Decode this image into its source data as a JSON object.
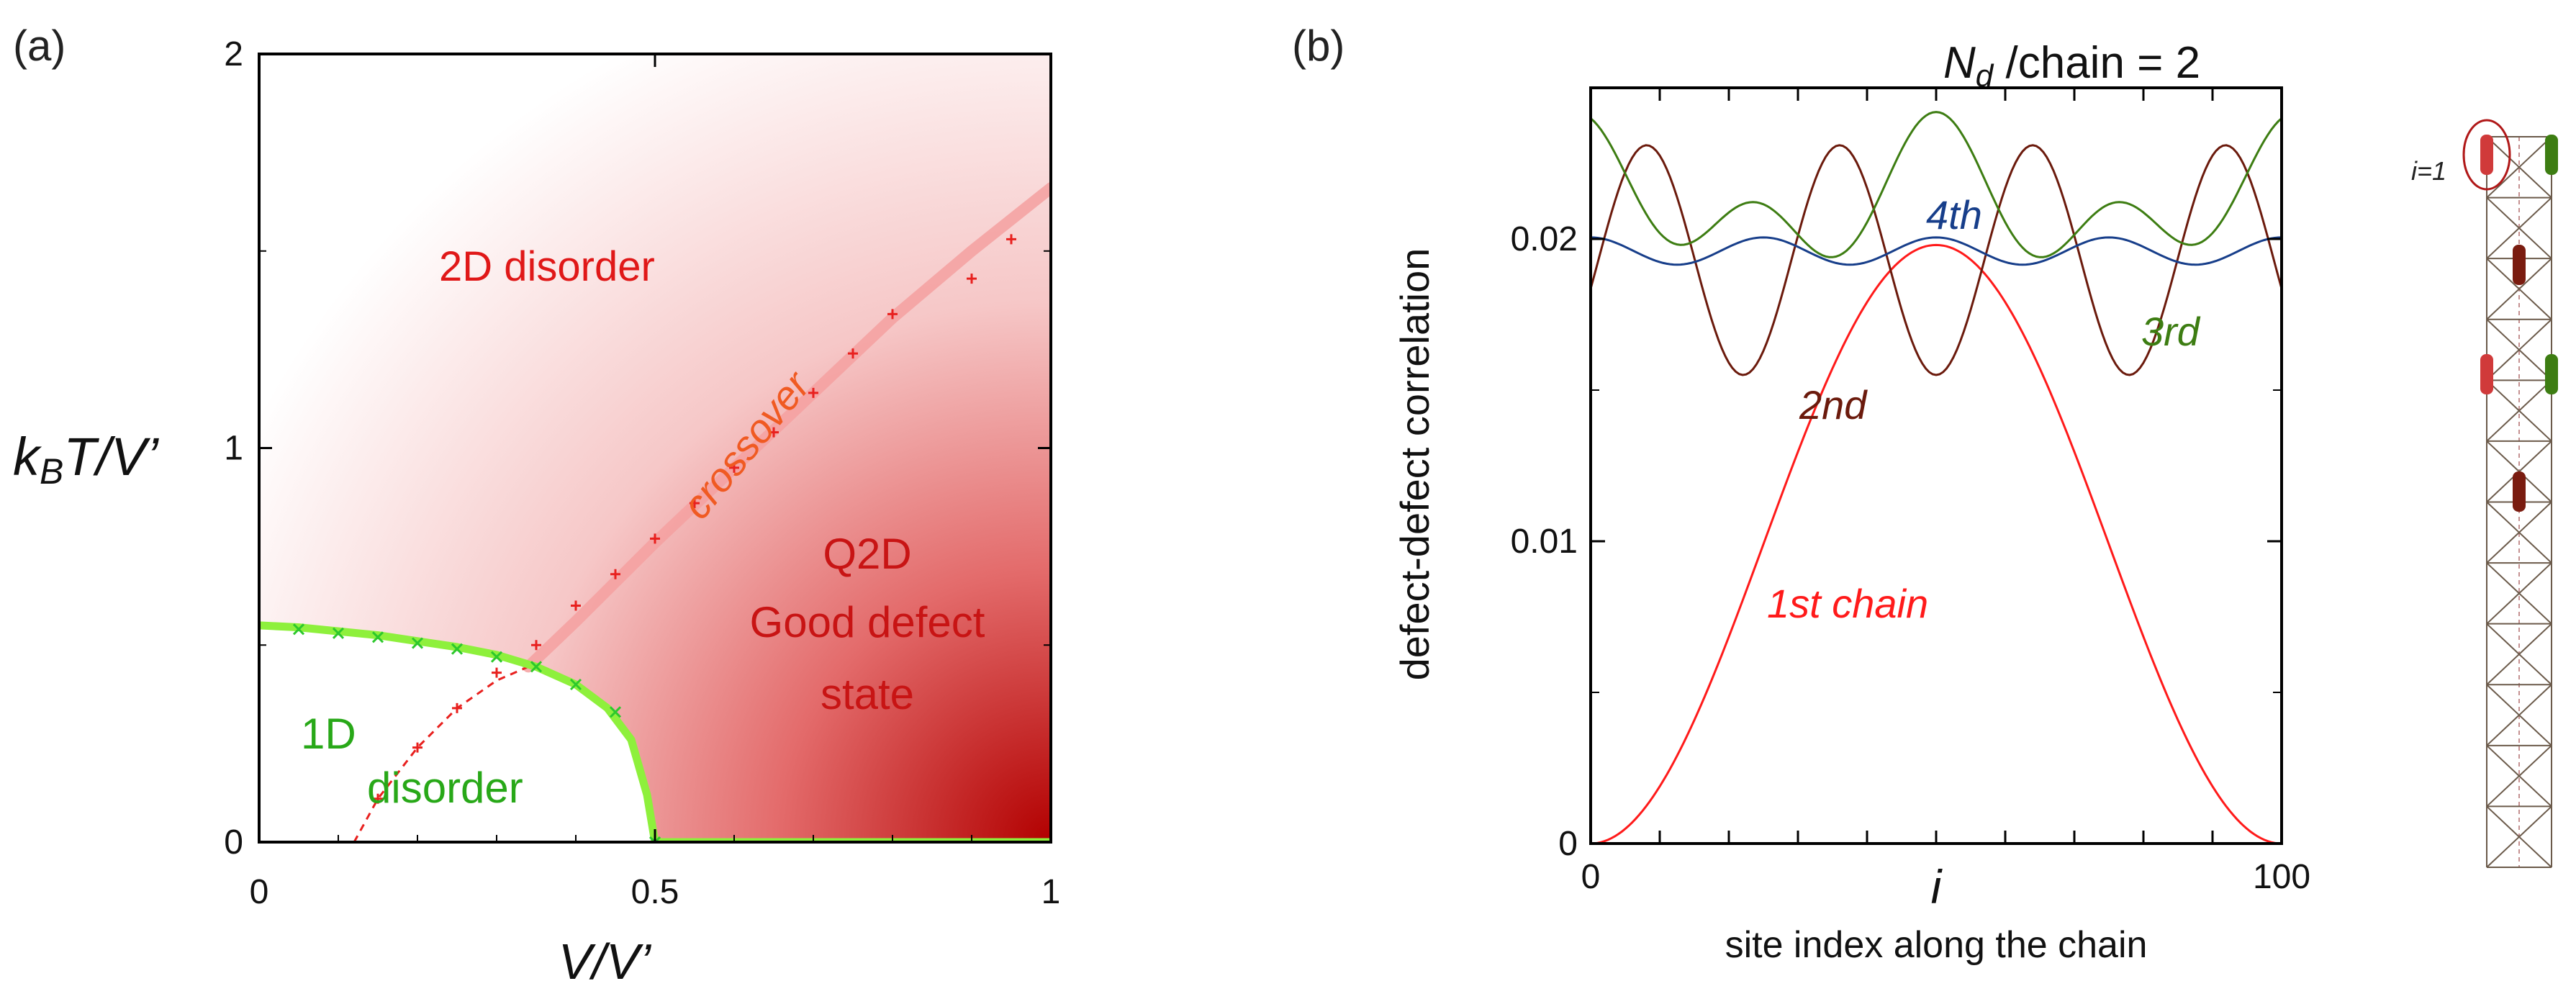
{
  "colors": {
    "phase_boundary": "#8ef03c",
    "crossover": "#f4a0a0",
    "crossover_marks": "#e8201e",
    "chain1": "#ff1a1a",
    "chain2": "#6b1a0c",
    "chain3": "#3d7d12",
    "chain4": "#173e8a",
    "region_1d": "#28a818",
    "region_red": "#e01818"
  },
  "chart_data": [
    {
      "type": "line",
      "panel_label": "(a)",
      "xlabel": "V/V’",
      "ylabel_prefix": "k",
      "ylabel_sub": "B",
      "ylabel_suffix": "T/V’",
      "xlim": [
        0,
        1
      ],
      "ylim": [
        0,
        2
      ],
      "xticks": [
        {
          "v": 0,
          "t": "0"
        },
        {
          "v": 0.5,
          "t": "0.5"
        },
        {
          "v": 1,
          "t": "1"
        }
      ],
      "yticks": [
        {
          "v": 0,
          "t": "0"
        },
        {
          "v": 1,
          "t": "1"
        },
        {
          "v": 2,
          "t": "2"
        }
      ],
      "regions": {
        "disorder_2d": "2D disorder",
        "q2d_1": "Q2D",
        "q2d_2": "Good defect",
        "q2d_3": "state",
        "one_d_1": "1D",
        "one_d_2": "disorder",
        "crossover": "crossover"
      },
      "phase_boundary_points": [
        {
          "x": 0.05,
          "y": 0.54
        },
        {
          "x": 0.1,
          "y": 0.53
        },
        {
          "x": 0.15,
          "y": 0.52
        },
        {
          "x": 0.2,
          "y": 0.505
        },
        {
          "x": 0.25,
          "y": 0.49
        },
        {
          "x": 0.3,
          "y": 0.47
        },
        {
          "x": 0.35,
          "y": 0.445
        },
        {
          "x": 0.4,
          "y": 0.4
        },
        {
          "x": 0.45,
          "y": 0.33
        },
        {
          "x": 0.5,
          "y": 0.0
        }
      ],
      "phase_boundary_curve": [
        [
          0,
          0.55
        ],
        [
          0.05,
          0.545
        ],
        [
          0.1,
          0.535
        ],
        [
          0.15,
          0.525
        ],
        [
          0.2,
          0.51
        ],
        [
          0.25,
          0.495
        ],
        [
          0.3,
          0.475
        ],
        [
          0.35,
          0.445
        ],
        [
          0.4,
          0.4
        ],
        [
          0.44,
          0.34
        ],
        [
          0.47,
          0.26
        ],
        [
          0.49,
          0.12
        ],
        [
          0.5,
          0.0
        ],
        [
          1.0,
          0.0
        ]
      ],
      "crossover_points": [
        {
          "x": 0.15,
          "y": 0.11
        },
        {
          "x": 0.2,
          "y": 0.24
        },
        {
          "x": 0.25,
          "y": 0.34
        },
        {
          "x": 0.3,
          "y": 0.43
        },
        {
          "x": 0.35,
          "y": 0.5
        },
        {
          "x": 0.4,
          "y": 0.6
        },
        {
          "x": 0.45,
          "y": 0.68
        },
        {
          "x": 0.5,
          "y": 0.77
        },
        {
          "x": 0.55,
          "y": 0.86
        },
        {
          "x": 0.6,
          "y": 0.95
        },
        {
          "x": 0.65,
          "y": 1.04
        },
        {
          "x": 0.7,
          "y": 1.14
        },
        {
          "x": 0.75,
          "y": 1.24
        },
        {
          "x": 0.8,
          "y": 1.34
        },
        {
          "x": 0.9,
          "y": 1.43
        },
        {
          "x": 0.95,
          "y": 1.53
        }
      ],
      "crossover_dashed": [
        [
          0.12,
          0.0
        ],
        [
          0.15,
          0.11
        ],
        [
          0.2,
          0.24
        ],
        [
          0.25,
          0.34
        ],
        [
          0.3,
          0.41
        ],
        [
          0.34,
          0.445
        ]
      ],
      "crossover_band": [
        [
          0.34,
          0.445
        ],
        [
          0.4,
          0.56
        ],
        [
          0.5,
          0.76
        ],
        [
          0.6,
          0.95
        ],
        [
          0.7,
          1.14
        ],
        [
          0.8,
          1.33
        ],
        [
          0.9,
          1.5
        ],
        [
          1.0,
          1.66
        ]
      ]
    },
    {
      "type": "line",
      "panel_label": "(b)",
      "title_main": "N",
      "title_sub": "d",
      "title_suffix": " /chain = 2",
      "xlabel_symbol": "i",
      "xlabel": "site index along the chain",
      "ylabel": "defect-defect correlation",
      "xlim": [
        0,
        100
      ],
      "ylim": [
        0,
        0.025
      ],
      "xticks": [
        {
          "v": 0,
          "t": "0"
        },
        {
          "v": 100,
          "t": "100"
        }
      ],
      "yticks": [
        {
          "v": 0,
          "t": "0"
        },
        {
          "v": 0.01,
          "t": "0.01"
        },
        {
          "v": 0.02,
          "t": "0.02"
        }
      ],
      "series": [
        {
          "name": "1st chain",
          "color": "#ff1a1a",
          "formula": "sin2",
          "mean": 0.0,
          "amp": 0.0198,
          "k": 1,
          "phase": 0
        },
        {
          "name": "2nd",
          "color": "#6b1a0c",
          "formula": "cos",
          "mean": 0.0193,
          "amp": 0.0038,
          "k": 3.58,
          "phase": 3.1416
        },
        {
          "name": "3rd",
          "color": "#3d7d12",
          "formula": "cos",
          "mean": 0.0212,
          "amp": 0.0015,
          "k": 3.83,
          "phase": 0,
          "extra": {
            "amp": 0.0015,
            "k": 2
          }
        },
        {
          "name": "4th",
          "color": "#173e8a",
          "formula": "cos",
          "mean": 0.0196,
          "amp": 0.00045,
          "k": 4,
          "phase": 0
        }
      ],
      "inset_label": "i=1"
    }
  ]
}
